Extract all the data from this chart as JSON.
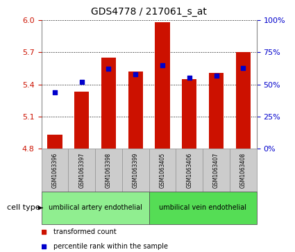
{
  "title": "GDS4778 / 217061_s_at",
  "samples": [
    "GSM1063396",
    "GSM1063397",
    "GSM1063398",
    "GSM1063399",
    "GSM1063405",
    "GSM1063406",
    "GSM1063407",
    "GSM1063408"
  ],
  "transformed_count": [
    4.93,
    5.33,
    5.65,
    5.52,
    5.98,
    5.45,
    5.51,
    5.7
  ],
  "percentile_rank": [
    44,
    52,
    62,
    58,
    65,
    55,
    57,
    63
  ],
  "ylim_left": [
    4.8,
    6.0
  ],
  "yticks_left": [
    4.8,
    5.1,
    5.4,
    5.7,
    6.0
  ],
  "ylim_right": [
    0,
    100
  ],
  "yticks_right": [
    0,
    25,
    50,
    75,
    100
  ],
  "bar_color": "#CC1100",
  "dot_color": "#0000CC",
  "cell_type_groups": [
    {
      "label": "umbilical artery endothelial",
      "start": 0,
      "end": 3,
      "color": "#90EE90"
    },
    {
      "label": "umbilical vein endothelial",
      "start": 4,
      "end": 7,
      "color": "#55DD55"
    }
  ],
  "cell_type_label": "cell type",
  "legend_items": [
    {
      "label": "transformed count",
      "color": "#CC1100"
    },
    {
      "label": "percentile rank within the sample",
      "color": "#0000CC"
    }
  ],
  "bar_width": 0.55,
  "bar_bottom": 4.8,
  "grid_color": "#000000",
  "bg_color": "#FFFFFF",
  "tick_label_color_left": "#CC1100",
  "tick_label_color_right": "#0000CC",
  "xlabel_box_color": "#CCCCCC",
  "xlabel_box_edge_color": "#999999"
}
